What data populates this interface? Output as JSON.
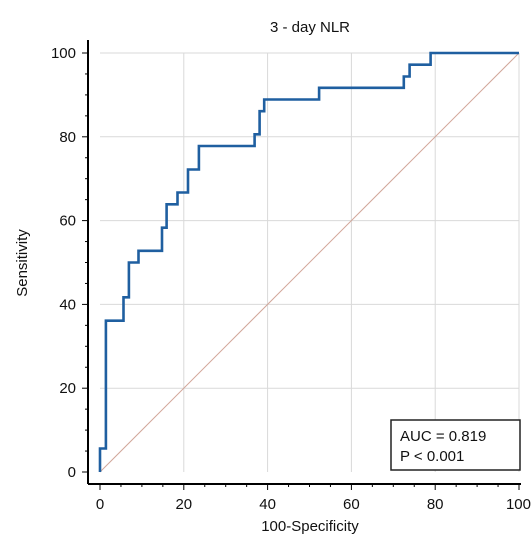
{
  "chart_data": {
    "type": "line",
    "title": "3 - day NLR",
    "xlabel": "100-Specificity",
    "ylabel": "Sensitivity",
    "xlim": [
      0,
      100
    ],
    "ylim": [
      0,
      100
    ],
    "x_ticks": [
      0,
      20,
      40,
      60,
      80,
      100
    ],
    "y_ticks": [
      0,
      20,
      40,
      60,
      80,
      100
    ],
    "grid": true,
    "legend_position": "bottom-right",
    "annotations": [
      "AUC = 0.819",
      "P < 0.001"
    ],
    "colors": {
      "roc": "#1f5fa0",
      "diagonal": "#d2a79a",
      "grid": "#d9d9d9",
      "axis": "#000000"
    },
    "series": [
      {
        "values": [
          [
            0,
            0
          ],
          [
            0,
            5.6
          ],
          [
            1.4,
            5.6
          ],
          [
            1.4,
            36.1
          ],
          [
            5.6,
            36.1
          ],
          [
            5.6,
            41.7
          ],
          [
            6.9,
            41.7
          ],
          [
            6.9,
            50.0
          ],
          [
            9.2,
            50.0
          ],
          [
            9.2,
            52.8
          ],
          [
            14.8,
            52.8
          ],
          [
            14.8,
            58.3
          ],
          [
            15.9,
            58.3
          ],
          [
            15.9,
            63.9
          ],
          [
            18.5,
            63.9
          ],
          [
            18.5,
            66.7
          ],
          [
            21.0,
            66.7
          ],
          [
            21.0,
            72.2
          ],
          [
            23.6,
            72.2
          ],
          [
            23.6,
            77.8
          ],
          [
            36.9,
            77.8
          ],
          [
            36.9,
            80.6
          ],
          [
            38.1,
            80.6
          ],
          [
            38.1,
            86.1
          ],
          [
            39.2,
            86.1
          ],
          [
            39.2,
            88.9
          ],
          [
            52.3,
            88.9
          ],
          [
            52.3,
            91.7
          ],
          [
            72.5,
            91.7
          ],
          [
            72.5,
            94.4
          ],
          [
            73.9,
            94.4
          ],
          [
            73.9,
            97.2
          ],
          [
            78.9,
            97.2
          ],
          [
            78.9,
            100
          ],
          [
            100,
            100
          ]
        ]
      },
      {
        "values": [
          [
            0,
            0
          ],
          [
            100,
            100
          ]
        ]
      }
    ]
  }
}
